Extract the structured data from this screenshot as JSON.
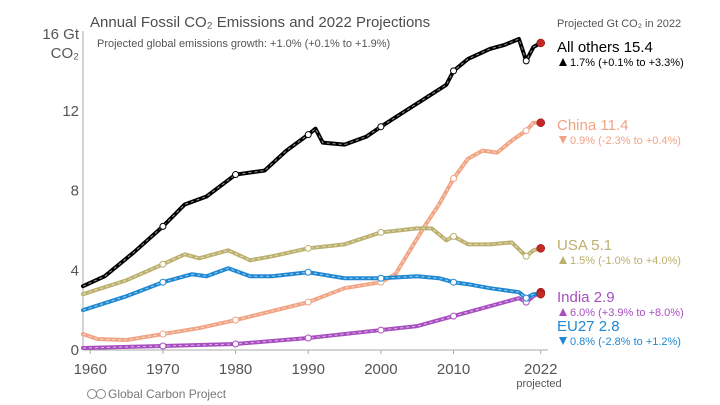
{
  "chart_data": {
    "type": "line",
    "title": "Annual Fossil CO₂ Emissions and 2022 Projections",
    "subtitle": "Projected global emissions growth: +1.0% (+0.1% to +1.9%)",
    "ylabel_top": "16 Gt",
    "ylabel_bottom": "CO₂",
    "right_header": "Projected Gt CO₂ in 2022",
    "credit": "Global Carbon Project",
    "projected_label": "projected",
    "xlim": [
      1959,
      2023
    ],
    "ylim": [
      0,
      16
    ],
    "x_ticks": [
      "1960",
      "1970",
      "1980",
      "1990",
      "2000",
      "2010",
      "2022"
    ],
    "y_ticks": [
      "0",
      "4",
      "8",
      "12",
      "16"
    ],
    "grid": false,
    "series": [
      {
        "name": "All others",
        "value_label": "15.4",
        "change_label": "1.7% (+0.1% to +3.3%)",
        "trend": "up",
        "color": "#000000",
        "x": [
          1959,
          1962,
          1966,
          1970,
          1973,
          1976,
          1980,
          1984,
          1987,
          1990,
          1991,
          1992,
          1995,
          1998,
          2000,
          2003,
          2006,
          2009,
          2010,
          2012,
          2015,
          2017,
          2019,
          2020,
          2021,
          2022
        ],
        "y": [
          3.2,
          3.7,
          4.9,
          6.2,
          7.3,
          7.7,
          8.8,
          9.0,
          10.0,
          10.8,
          11.1,
          10.4,
          10.3,
          10.7,
          11.2,
          11.9,
          12.6,
          13.3,
          14.0,
          14.6,
          15.1,
          15.3,
          15.6,
          14.5,
          15.2,
          15.4
        ]
      },
      {
        "name": "China",
        "value_label": "11.4",
        "change_label": "0.9% (-2.3% to +0.4%)",
        "trend": "down",
        "color": "#f0a484",
        "x": [
          1959,
          1961,
          1965,
          1970,
          1975,
          1980,
          1985,
          1990,
          1995,
          2000,
          2002,
          2004,
          2006,
          2008,
          2010,
          2012,
          2014,
          2016,
          2018,
          2020,
          2021,
          2022
        ],
        "y": [
          0.8,
          0.55,
          0.5,
          0.8,
          1.1,
          1.5,
          1.95,
          2.4,
          3.1,
          3.4,
          3.8,
          5.0,
          6.2,
          7.3,
          8.6,
          9.6,
          10.0,
          9.9,
          10.5,
          11.0,
          11.4,
          11.4
        ]
      },
      {
        "name": "USA",
        "value_label": "5.1",
        "change_label": "1.5% (-1.0% to +4.0%)",
        "trend": "up",
        "color": "#bcb06e",
        "x": [
          1959,
          1965,
          1970,
          1973,
          1975,
          1979,
          1982,
          1985,
          1990,
          1995,
          2000,
          2005,
          2007,
          2009,
          2010,
          2012,
          2015,
          2018,
          2020,
          2021,
          2022
        ],
        "y": [
          2.8,
          3.5,
          4.3,
          4.8,
          4.6,
          5.0,
          4.5,
          4.7,
          5.1,
          5.3,
          5.9,
          6.1,
          6.1,
          5.5,
          5.7,
          5.3,
          5.3,
          5.4,
          4.7,
          5.0,
          5.1
        ]
      },
      {
        "name": "India",
        "value_label": "2.9",
        "change_label": "6.0% (+3.9% to +8.0%)",
        "trend": "up",
        "color": "#a84fc0",
        "x": [
          1959,
          1970,
          1980,
          1990,
          2000,
          2005,
          2010,
          2015,
          2019,
          2020,
          2021,
          2022
        ],
        "y": [
          0.1,
          0.2,
          0.3,
          0.6,
          1.0,
          1.2,
          1.7,
          2.2,
          2.6,
          2.4,
          2.7,
          2.9
        ]
      },
      {
        "name": "EU27",
        "value_label": "2.8",
        "change_label": "0.8% (-2.8% to +1.2%)",
        "trend": "down",
        "color": "#1e88d2",
        "x": [
          1959,
          1965,
          1970,
          1974,
          1976,
          1979,
          1982,
          1985,
          1990,
          1995,
          2000,
          2005,
          2008,
          2010,
          2012,
          2015,
          2019,
          2020,
          2021,
          2022
        ],
        "y": [
          2.0,
          2.7,
          3.4,
          3.8,
          3.7,
          4.1,
          3.7,
          3.7,
          3.9,
          3.6,
          3.6,
          3.7,
          3.6,
          3.4,
          3.3,
          3.1,
          2.9,
          2.6,
          2.8,
          2.8
        ]
      }
    ]
  }
}
